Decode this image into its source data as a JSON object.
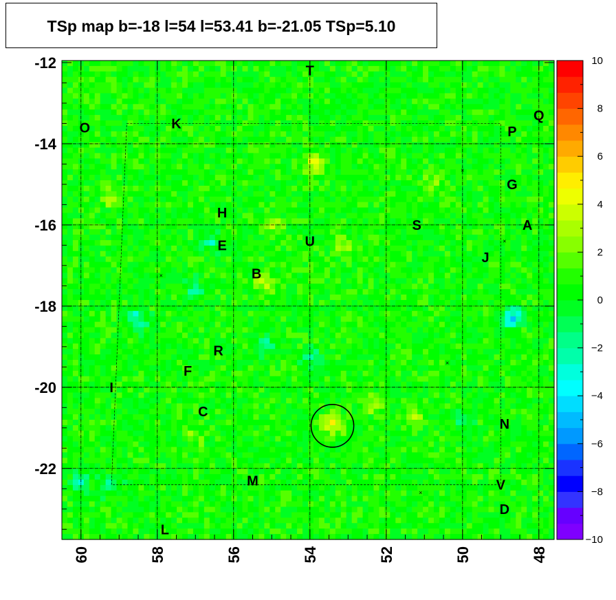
{
  "title": "TSp map b=-18 l=54 l=53.41 b=-21.05 TSp=5.10",
  "chart_data": {
    "type": "heatmap",
    "title": "TSp map b=-18 l=54 l=53.41 b=-21.05 TSp=5.10",
    "xlabel": "",
    "ylabel": "",
    "xlim": [
      60.5,
      47.6
    ],
    "ylim": [
      -23.75,
      -11.95
    ],
    "x_reversed": true,
    "x_ticks": [
      "60",
      "58",
      "56",
      "54",
      "52",
      "50",
      "48"
    ],
    "y_ticks": [
      "-12",
      "-14",
      "-16",
      "-18",
      "-20",
      "-22"
    ],
    "colorbar": {
      "range": [
        -10,
        10
      ],
      "ticks": [
        "10",
        "8",
        "6",
        "4",
        "2",
        "0",
        "−2",
        "−4",
        "−6",
        "−8",
        "−10"
      ],
      "palette": [
        "#7f00ff",
        "#6600ff",
        "#3333ff",
        "#0000ff",
        "#1a33ff",
        "#0066ff",
        "#0099ff",
        "#00bbff",
        "#00ddff",
        "#00ffff",
        "#00ffdd",
        "#00ffaa",
        "#00ff88",
        "#00ff55",
        "#00ff22",
        "#00ff00",
        "#22ff00",
        "#55ff00",
        "#88ff00",
        "#aaff00",
        "#ccff00",
        "#eeff00",
        "#ffee00",
        "#ffcc00",
        "#ffaa00",
        "#ff8800",
        "#ff6600",
        "#ff4400",
        "#ff2200",
        "#ff0000"
      ]
    },
    "background_level": 0.5,
    "hotspots": [
      {
        "l": 53.41,
        "b": -20.9,
        "value": 4.5
      },
      {
        "l": 53.9,
        "b": -14.5,
        "value": 3.2
      },
      {
        "l": 53.1,
        "b": -16.5,
        "value": 2.5
      },
      {
        "l": 55.2,
        "b": -17.4,
        "value": 3.0
      },
      {
        "l": 55.0,
        "b": -16.0,
        "value": 2.3
      },
      {
        "l": 59.2,
        "b": -15.3,
        "value": 2.5
      },
      {
        "l": 52.4,
        "b": -20.4,
        "value": 2.5
      },
      {
        "l": 51.3,
        "b": -20.7,
        "value": 2.3
      },
      {
        "l": 50.8,
        "b": -15.0,
        "value": 1.8
      },
      {
        "l": 57.0,
        "b": -21.2,
        "value": 1.8
      },
      {
        "l": 48.7,
        "b": -18.3,
        "value": -4.5
      },
      {
        "l": 58.5,
        "b": -18.3,
        "value": -3.0
      },
      {
        "l": 56.6,
        "b": -16.4,
        "value": -2.5
      },
      {
        "l": 57.0,
        "b": -17.6,
        "value": -2.5
      },
      {
        "l": 55.2,
        "b": -19.0,
        "value": -2.5
      },
      {
        "l": 60.0,
        "b": -22.3,
        "value": -2.5
      },
      {
        "l": 59.2,
        "b": -22.4,
        "value": -2.2
      },
      {
        "l": 53.9,
        "b": -19.3,
        "value": -2.0
      },
      {
        "l": 50.0,
        "b": -20.8,
        "value": -1.5
      }
    ],
    "tsp_max": {
      "l": 53.41,
      "b": -21.05,
      "value": 5.1
    },
    "sources": [
      {
        "id": "O",
        "l": 59.9,
        "b": -13.6
      },
      {
        "id": "K",
        "l": 57.5,
        "b": -13.5
      },
      {
        "id": "T",
        "l": 54.0,
        "b": -12.2
      },
      {
        "id": "Q",
        "l": 48.0,
        "b": -13.3
      },
      {
        "id": "P",
        "l": 48.7,
        "b": -13.7
      },
      {
        "id": "G",
        "l": 48.7,
        "b": -15.0
      },
      {
        "id": "H",
        "l": 56.3,
        "b": -15.7
      },
      {
        "id": "E",
        "l": 56.3,
        "b": -16.5
      },
      {
        "id": "U",
        "l": 54.0,
        "b": -16.4
      },
      {
        "id": "S",
        "l": 51.2,
        "b": -16.0
      },
      {
        "id": "A",
        "l": 48.3,
        "b": -16.0
      },
      {
        "id": "J",
        "l": 49.4,
        "b": -16.8
      },
      {
        "id": "B",
        "l": 55.4,
        "b": -17.2
      },
      {
        "id": "R",
        "l": 56.4,
        "b": -19.1
      },
      {
        "id": "F",
        "l": 57.2,
        "b": -19.6
      },
      {
        "id": "I",
        "l": 59.2,
        "b": -20.0
      },
      {
        "id": "C",
        "l": 56.8,
        "b": -20.6
      },
      {
        "id": "N",
        "l": 48.9,
        "b": -20.9
      },
      {
        "id": "M",
        "l": 55.5,
        "b": -22.3
      },
      {
        "id": "V",
        "l": 49.0,
        "b": -22.4
      },
      {
        "id": "D",
        "l": 48.9,
        "b": -23.0
      },
      {
        "id": "L",
        "l": 57.8,
        "b": -23.5
      }
    ],
    "x_markers": [
      {
        "l": 50.0,
        "b": -14.65
      },
      {
        "l": 48.9,
        "b": -16.4
      },
      {
        "l": 57.9,
        "b": -17.25
      },
      {
        "l": 50.4,
        "b": -19.4
      },
      {
        "l": 51.1,
        "b": -22.6
      }
    ],
    "circle": {
      "l": 53.41,
      "b": -20.95,
      "radius_deg": 0.56
    },
    "grid_l": [
      60,
      58,
      56,
      54,
      52,
      50,
      48
    ],
    "grid_b": [
      -14,
      -16,
      -18,
      -20,
      -22
    ]
  }
}
